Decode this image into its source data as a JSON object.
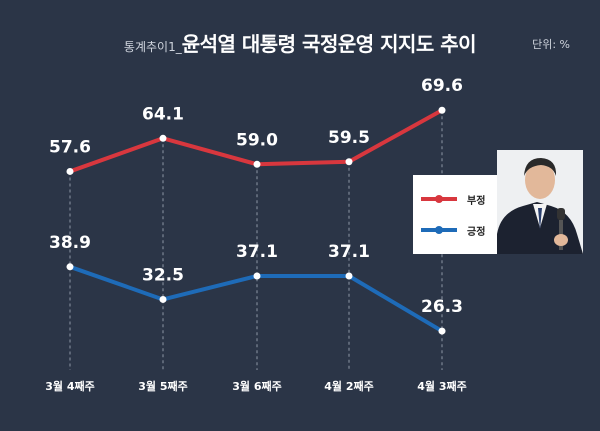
{
  "header": {
    "prefix": "통계추이1_",
    "title": "윤석열 대통령 국정운영 지지도 추이",
    "unit": "단위: %"
  },
  "legend": {
    "negative_label": "부정",
    "positive_label": "긍정"
  },
  "colors": {
    "negative": "#d8373e",
    "positive": "#1e6bb8",
    "background": "#2b3547"
  },
  "chart_data": {
    "type": "line",
    "title": "윤석열 대통령 국정운영 지지도 추이",
    "categories": [
      "3월 4째주",
      "3월 5째주",
      "3월 6째주",
      "4월 2째주",
      "4월 3째주"
    ],
    "series": [
      {
        "name": "부정",
        "values": [
          57.6,
          64.1,
          59.0,
          59.5,
          69.6
        ],
        "labels": [
          "57.6",
          "64.1",
          "59.0",
          "59.5",
          "69.6"
        ]
      },
      {
        "name": "긍정",
        "values": [
          38.9,
          32.5,
          37.1,
          37.1,
          26.3
        ],
        "labels": [
          "38.9",
          "32.5",
          "37.1",
          "37.1",
          "26.3"
        ]
      }
    ],
    "xlabel": "",
    "ylabel": "",
    "unit": "%",
    "grid": false
  }
}
